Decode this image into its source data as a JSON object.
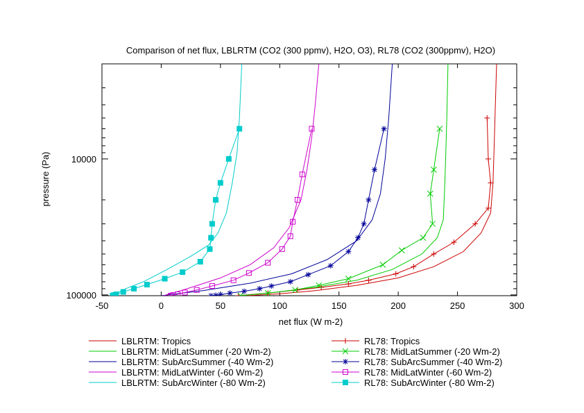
{
  "chart_data": {
    "type": "line",
    "title": "Comparison of net flux, LBLRTM (CO2 (300 ppmv), H2O, O3), RL78 (CO2 (300ppmv), H2O)",
    "xlabel": "net flux (W m-2)",
    "ylabel": "pressure (Pa)",
    "xlim": [
      -50,
      300
    ],
    "ylim": [
      101325,
      2000
    ],
    "y_scale": "log",
    "y_inverted": true,
    "x_ticks": [
      -50,
      0,
      50,
      100,
      150,
      200,
      250,
      300
    ],
    "x_tick_labels": [
      "-50",
      "0",
      "50",
      "100",
      "150",
      "200",
      "250",
      "300"
    ],
    "y_ticks": [
      10000,
      100000
    ],
    "y_tick_labels": [
      "10000",
      "100000"
    ],
    "grid": false,
    "legend_placement": "below",
    "series": [
      {
        "name": "LBLRTM: Tropics",
        "style": "line",
        "color": "#cc0000",
        "points": [
          [
            72,
            101325
          ],
          [
            100,
            98000
          ],
          [
            130,
            93000
          ],
          [
            165,
            85000
          ],
          [
            200,
            75000
          ],
          [
            230,
            62000
          ],
          [
            255,
            48000
          ],
          [
            270,
            35000
          ],
          [
            278,
            25000
          ],
          [
            280,
            15000
          ],
          [
            281,
            8000
          ],
          [
            282,
            4000
          ],
          [
            283,
            2000
          ]
        ]
      },
      {
        "name": "LBLRTM: MidLatSummer (-20 Wm-2)",
        "style": "line",
        "color": "#00cc00",
        "points": [
          [
            65,
            101325
          ],
          [
            95,
            96000
          ],
          [
            130,
            88000
          ],
          [
            165,
            78000
          ],
          [
            195,
            65000
          ],
          [
            220,
            50000
          ],
          [
            233,
            38000
          ],
          [
            238,
            28000
          ],
          [
            239,
            18000
          ],
          [
            240,
            10000
          ],
          [
            241,
            5000
          ],
          [
            242,
            2000
          ]
        ]
      },
      {
        "name": "LBLRTM: SubArcSummer (-40 Wm-2)",
        "style": "line",
        "color": "#000099",
        "points": [
          [
            0,
            101325
          ],
          [
            35,
            93000
          ],
          [
            75,
            82000
          ],
          [
            110,
            70000
          ],
          [
            140,
            55000
          ],
          [
            165,
            40000
          ],
          [
            178,
            28000
          ],
          [
            185,
            18000
          ],
          [
            189,
            10000
          ],
          [
            192,
            5000
          ],
          [
            195,
            2000
          ]
        ]
      },
      {
        "name": "LBLRTM: MidLatWinter (-60 Wm-2)",
        "style": "line",
        "color": "#cc00cc",
        "points": [
          [
            2,
            101325
          ],
          [
            22,
            90000
          ],
          [
            50,
            75000
          ],
          [
            75,
            60000
          ],
          [
            95,
            45000
          ],
          [
            108,
            32000
          ],
          [
            118,
            20000
          ],
          [
            123,
            12000
          ],
          [
            127,
            7000
          ],
          [
            130,
            4000
          ],
          [
            133,
            2000
          ]
        ]
      },
      {
        "name": "LBLRTM: SubArcWinter (-80 Wm-2)",
        "style": "line",
        "color": "#00cccc",
        "points": [
          [
            -42,
            101325
          ],
          [
            -30,
            90000
          ],
          [
            -15,
            80000
          ],
          [
            5,
            65000
          ],
          [
            25,
            52000
          ],
          [
            40,
            43000
          ],
          [
            48,
            35000
          ],
          [
            55,
            25000
          ],
          [
            60,
            15000
          ],
          [
            64,
            9000
          ],
          [
            66,
            5000
          ],
          [
            68,
            2000
          ]
        ]
      },
      {
        "name": "RL78: Tropics",
        "style": "points",
        "marker": "plus",
        "color": "#cc0000",
        "points": [
          [
            65,
            101325
          ],
          [
            90,
            97000
          ],
          [
            115,
            92000
          ],
          [
            135,
            88000
          ],
          [
            158,
            83000
          ],
          [
            175,
            78000
          ],
          [
            198,
            70000
          ],
          [
            213,
            62000
          ],
          [
            230,
            50000
          ],
          [
            247,
            41000
          ],
          [
            265,
            30000
          ],
          [
            276,
            23000
          ],
          [
            278,
            15000
          ],
          [
            276,
            10000
          ],
          [
            275,
            5000
          ]
        ]
      },
      {
        "name": "RL78: MidLatSummer (-20 Wm-2)",
        "style": "points",
        "marker": "x",
        "color": "#00cc00",
        "points": [
          [
            67,
            101325
          ],
          [
            90,
            97000
          ],
          [
            113,
            92000
          ],
          [
            133,
            85000
          ],
          [
            158,
            76000
          ],
          [
            187,
            60000
          ],
          [
            203,
            47000
          ],
          [
            221,
            38000
          ],
          [
            229,
            30000
          ],
          [
            227,
            18000
          ],
          [
            230,
            12000
          ],
          [
            235,
            6000
          ]
        ]
      },
      {
        "name": "RL78: SubArcSummer (-40 Wm-2)",
        "style": "points",
        "marker": "star",
        "color": "#000099",
        "points": [
          [
            42,
            101325
          ],
          [
            46,
            100500
          ],
          [
            50,
            99500
          ],
          [
            58,
            97000
          ],
          [
            70,
            94000
          ],
          [
            83,
            90000
          ],
          [
            93,
            86000
          ],
          [
            109,
            80000
          ],
          [
            124,
            71000
          ],
          [
            143,
            61000
          ],
          [
            158,
            48000
          ],
          [
            166,
            38000
          ],
          [
            171,
            30000
          ],
          [
            175,
            20000
          ],
          [
            180,
            12000
          ],
          [
            188,
            6000
          ]
        ]
      },
      {
        "name": "RL78: MidLatWinter (-60 Wm-2)",
        "style": "points",
        "marker": "open-square",
        "color": "#cc00cc",
        "points": [
          [
            8,
            101325
          ],
          [
            10,
            100300
          ],
          [
            14,
            99000
          ],
          [
            20,
            96000
          ],
          [
            30,
            92000
          ],
          [
            43,
            86000
          ],
          [
            61,
            78000
          ],
          [
            74,
            69000
          ],
          [
            90,
            58000
          ],
          [
            102,
            46000
          ],
          [
            109,
            37000
          ],
          [
            111,
            29000
          ],
          [
            115,
            20000
          ],
          [
            119,
            13000
          ],
          [
            127,
            6000
          ]
        ]
      },
      {
        "name": "RL78: SubArcWinter (-80 Wm-2)",
        "style": "points",
        "marker": "filled-square",
        "color": "#00cccc",
        "points": [
          [
            -41,
            101325
          ],
          [
            -40,
            100300
          ],
          [
            -38,
            99000
          ],
          [
            -32,
            95000
          ],
          [
            -23,
            90000
          ],
          [
            -12,
            84000
          ],
          [
            3,
            76000
          ],
          [
            18,
            68000
          ],
          [
            33,
            57000
          ],
          [
            41,
            46000
          ],
          [
            42,
            38000
          ],
          [
            43,
            30000
          ],
          [
            46,
            20000
          ],
          [
            50,
            15000
          ],
          [
            57,
            10000
          ],
          [
            66,
            6000
          ]
        ]
      }
    ]
  }
}
